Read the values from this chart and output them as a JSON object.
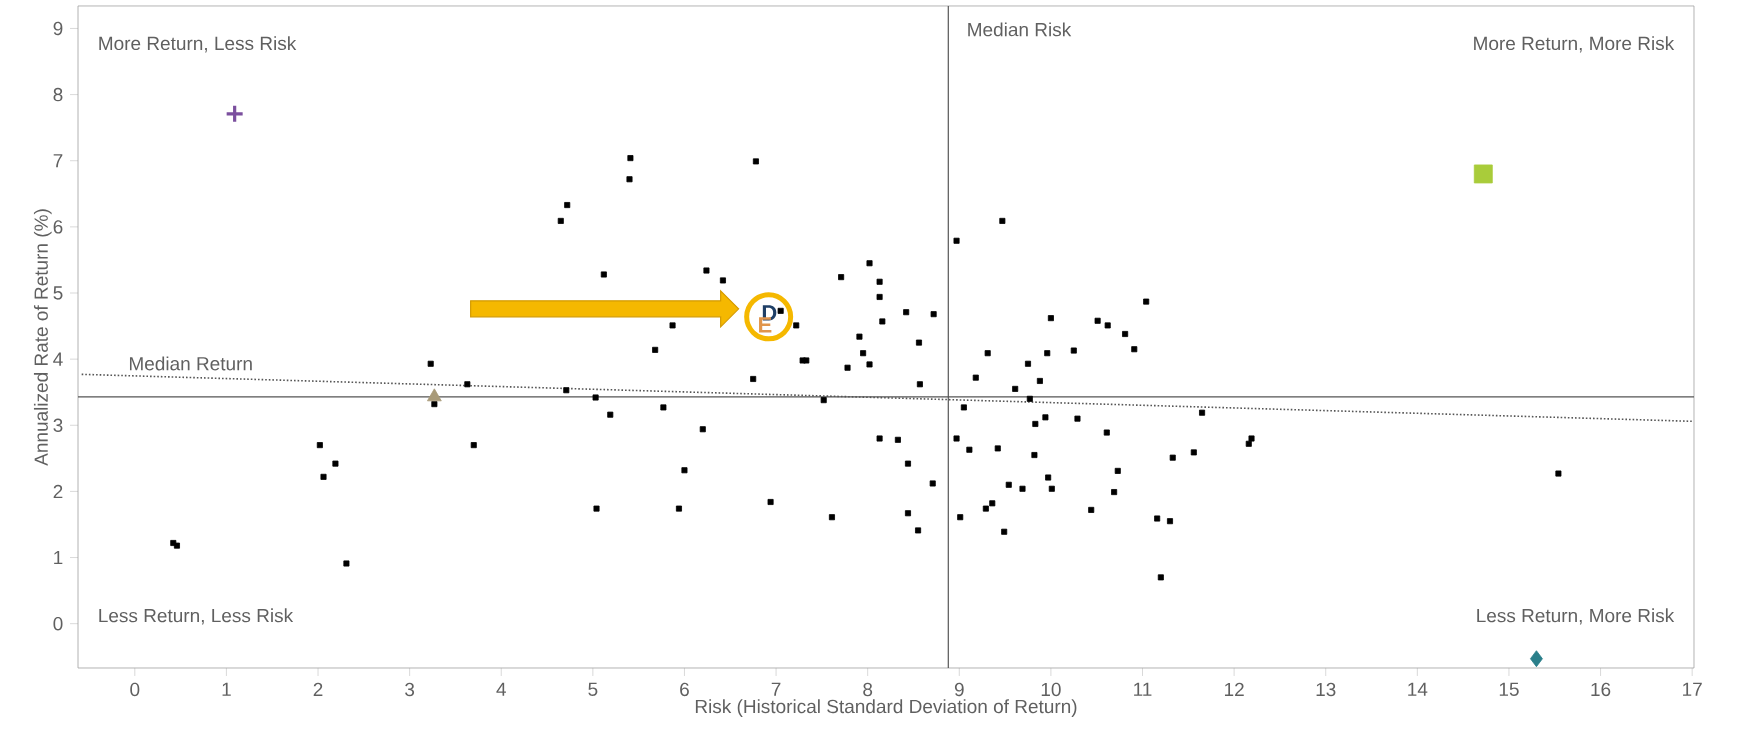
{
  "chart_data": {
    "type": "scatter",
    "xlabel": "Risk (Historical Standard Deviation of Return)",
    "ylabel": "Annualized Rate of Return (%)",
    "xlim": [
      -0.62,
      17.02
    ],
    "ylim": [
      -0.67,
      9.34
    ],
    "xticks": [
      0,
      1,
      2,
      3,
      4,
      5,
      6,
      7,
      8,
      9,
      10,
      11,
      12,
      13,
      14,
      15,
      16,
      17
    ],
    "yticks": [
      0,
      1,
      2,
      3,
      4,
      5,
      6,
      7,
      8,
      9
    ],
    "grid": false,
    "series": [
      {
        "marker": "square",
        "color": "#000000",
        "x": [
          0.42,
          0.46,
          2.02,
          2.06,
          2.19,
          2.31,
          3.23,
          3.27,
          3.63,
          3.7,
          4.65,
          4.72,
          4.71,
          5.03,
          5.04,
          5.12,
          5.19,
          5.4,
          5.41,
          5.68,
          5.77,
          5.87,
          5.94,
          6.0,
          6.2,
          6.24,
          6.42,
          6.75,
          6.78,
          6.94,
          7.05,
          7.22,
          7.29,
          7.33,
          7.52,
          7.61,
          7.71,
          7.78,
          7.91,
          7.95,
          8.02,
          8.02,
          8.13,
          8.13,
          8.16,
          8.13,
          8.33,
          8.42,
          8.44,
          8.44,
          8.55,
          8.56,
          8.57,
          8.71,
          8.72,
          8.97,
          8.97,
          9.01,
          9.05,
          9.11,
          9.18,
          9.29,
          9.31,
          9.36,
          9.42,
          9.47,
          9.49,
          9.54,
          9.61,
          9.69,
          9.75,
          9.77,
          9.82,
          9.83,
          9.88,
          9.94,
          9.96,
          9.97,
          10.0,
          10.01,
          10.25,
          10.29,
          10.44,
          10.51,
          10.61,
          10.62,
          10.69,
          10.73,
          10.81,
          10.91,
          11.04,
          11.16,
          11.2,
          11.3,
          11.33,
          11.56,
          11.65,
          12.16,
          12.19,
          15.54
        ],
        "values": [
          1.22,
          1.18,
          2.7,
          2.22,
          2.42,
          0.91,
          3.93,
          3.32,
          3.62,
          2.7,
          6.09,
          6.33,
          3.53,
          3.42,
          1.74,
          5.28,
          3.16,
          6.72,
          7.04,
          4.14,
          3.27,
          4.51,
          1.74,
          2.32,
          2.94,
          5.34,
          5.19,
          3.7,
          6.99,
          1.84,
          4.73,
          4.51,
          3.98,
          3.98,
          3.38,
          1.61,
          5.24,
          3.87,
          4.34,
          4.09,
          3.92,
          5.45,
          5.17,
          4.94,
          4.57,
          2.8,
          2.78,
          4.71,
          2.42,
          1.67,
          1.41,
          4.25,
          3.62,
          2.12,
          4.68,
          5.79,
          2.8,
          1.61,
          3.27,
          2.63,
          3.72,
          1.74,
          4.09,
          1.82,
          2.65,
          6.09,
          1.39,
          2.1,
          3.55,
          2.04,
          3.93,
          3.4,
          2.55,
          3.02,
          3.67,
          3.12,
          4.09,
          2.21,
          4.62,
          2.04,
          4.13,
          3.1,
          1.72,
          4.58,
          2.89,
          4.51,
          1.99,
          2.31,
          4.38,
          4.15,
          4.87,
          1.59,
          0.7,
          1.55,
          2.51,
          2.59,
          3.19,
          2.72,
          2.8,
          2.27
        ]
      },
      {
        "marker": "cross",
        "color": "#7b4f9e",
        "x": [
          1.09
        ],
        "values": [
          7.71
        ]
      },
      {
        "marker": "triangle",
        "color": "#a89a78",
        "x": [
          3.27
        ],
        "values": [
          3.43
        ]
      },
      {
        "marker": "square",
        "color": "#a9cc3a",
        "x": [
          14.72
        ],
        "values": [
          6.8
        ]
      },
      {
        "marker": "diamond",
        "color": "#2a7f8a",
        "x": [
          15.3
        ],
        "values": [
          -0.53
        ]
      },
      {
        "type": "line",
        "line_style": "dotted",
        "color": "#555555",
        "x": [
          -0.58,
          17.0
        ],
        "values": [
          3.77,
          3.06
        ]
      }
    ],
    "ref_lines": [
      {
        "axis": "x",
        "value": 8.88,
        "label": "Median Risk",
        "color": "#555555"
      },
      {
        "axis": "y",
        "value": 3.43,
        "label": "Median Return",
        "color": "#555555"
      }
    ],
    "annotations": [
      "More Return, Less Risk",
      "More Return, More Risk",
      "Less Return, Less Risk",
      "Less Return, More Risk",
      {
        "text": "D",
        "x": 7.05,
        "y": 4.73
      },
      "E"
    ]
  }
}
